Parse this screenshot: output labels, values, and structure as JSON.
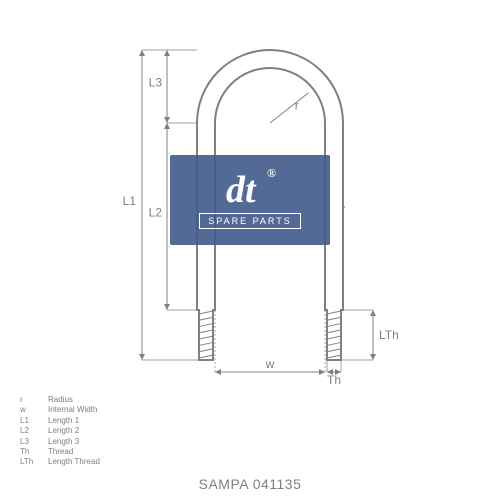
{
  "diagram": {
    "type": "technical-drawing",
    "subject": "u-bolt",
    "stroke_color": "#808080",
    "stroke_width": 2,
    "background": "#ffffff",
    "ubolt": {
      "inner_width": 110,
      "leg_length": 260,
      "arc_radius": 55,
      "shank_width": 18,
      "thread_length": 50,
      "thread_width": 14
    },
    "dims": {
      "r": "r",
      "w": "w",
      "L1": "L1",
      "L2": "L2",
      "L3": "L3",
      "Th": "Th",
      "LTh": "LTh"
    },
    "dim_color": "#808080",
    "dim_fontsize": 12
  },
  "legend": {
    "rows": [
      {
        "key": "r",
        "label": "Radius"
      },
      {
        "key": "w",
        "label": "Internal Width"
      },
      {
        "key": "L1",
        "label": "Length 1"
      },
      {
        "key": "L2",
        "label": "Length 2"
      },
      {
        "key": "L3",
        "label": "Length 3"
      },
      {
        "key": "Th",
        "label": "Thread"
      },
      {
        "key": "LTh",
        "label": "Length Thread"
      }
    ],
    "text_color": "#808080",
    "fontsize": 8
  },
  "logo": {
    "brand_top": "®",
    "brand_main": "dt",
    "brand_sub": "SPARE PARTS",
    "bg_color": "#415a8c",
    "text_color": "#ffffff"
  },
  "footer": {
    "text": "SAMPA 041135",
    "color": "#808080",
    "fontsize": 14
  }
}
